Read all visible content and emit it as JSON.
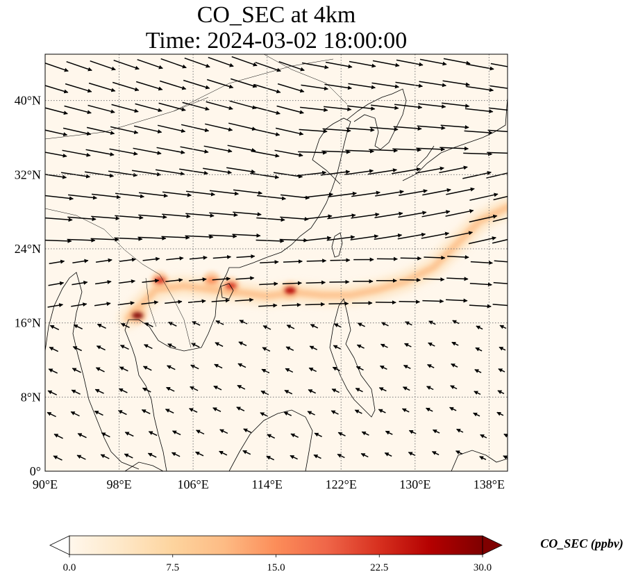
{
  "title": {
    "line1": "CO_SEC at 4km",
    "line2": "Time: 2024-03-02 18:00:00"
  },
  "map": {
    "lon_range": [
      90,
      140
    ],
    "lat_range": [
      0,
      45
    ],
    "lon_ticks": [
      {
        "value": 90,
        "label": "90°E"
      },
      {
        "value": 98,
        "label": "98°E"
      },
      {
        "value": 106,
        "label": "106°E"
      },
      {
        "value": 114,
        "label": "114°E"
      },
      {
        "value": 122,
        "label": "122°E"
      },
      {
        "value": 130,
        "label": "130°E"
      },
      {
        "value": 138,
        "label": "138°E"
      }
    ],
    "lat_ticks": [
      {
        "value": 0,
        "label": "0°"
      },
      {
        "value": 8,
        "label": "8°N"
      },
      {
        "value": 16,
        "label": "16°N"
      },
      {
        "value": 24,
        "label": "24°N"
      },
      {
        "value": 32,
        "label": "32°N"
      },
      {
        "value": 40,
        "label": "40°N"
      }
    ],
    "plume": [
      [
        99,
        16.5
      ],
      [
        102,
        19.6
      ],
      [
        105,
        20.0
      ],
      [
        108,
        19.6
      ],
      [
        111,
        19.3
      ],
      [
        114,
        18.9
      ],
      [
        117,
        19.3
      ],
      [
        120,
        19.0
      ],
      [
        123,
        19.0
      ],
      [
        126,
        19.6
      ],
      [
        129,
        20.5
      ],
      [
        132,
        22.0
      ],
      [
        134.5,
        24.5
      ],
      [
        137,
        27.0
      ],
      [
        140,
        28.5
      ]
    ],
    "hotspots": [
      {
        "lon": 100,
        "lat": 16.8,
        "value": 30
      },
      {
        "lon": 102.4,
        "lat": 20.6,
        "value": 22
      },
      {
        "lon": 108,
        "lat": 20.6,
        "value": 14
      },
      {
        "lon": 110.1,
        "lat": 20.0,
        "value": 22
      },
      {
        "lon": 116.5,
        "lat": 19.5,
        "value": 28
      }
    ]
  },
  "colorbar": {
    "min": 0.0,
    "max": 30.0,
    "ticks": [
      "0.0",
      "7.5",
      "15.0",
      "22.5",
      "30.0"
    ],
    "label": "CO_SEC (ppbv)",
    "colormap": "OrRd",
    "stops": [
      "#fff7ec",
      "#fee8c8",
      "#fdd49e",
      "#fdbb84",
      "#fc8d59",
      "#ef6548",
      "#d7301f",
      "#b30000",
      "#7f0000"
    ]
  }
}
